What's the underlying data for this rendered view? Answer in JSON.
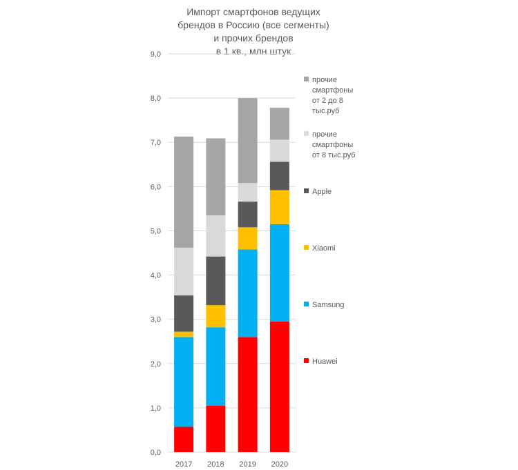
{
  "chart_data": {
    "type": "bar",
    "stacked": true,
    "title_lines": [
      "Импорт смартфонов ведущих",
      "брендов в Россию (все сегменты)",
      "и прочих брендов",
      "в 1 кв., млн штук"
    ],
    "categories": [
      "2017",
      "2018",
      "2019",
      "2020"
    ],
    "ylim": [
      0,
      9
    ],
    "yticks": [
      "0,0",
      "1,0",
      "2,0",
      "3,0",
      "4,0",
      "5,0",
      "6,0",
      "7,0",
      "8,0",
      "9,0"
    ],
    "grid": true,
    "legend_position": "right",
    "series": [
      {
        "name": "Huawei",
        "color": "#ff0000",
        "values": [
          0.57,
          1.05,
          2.6,
          2.95
        ]
      },
      {
        "name": "Samsung",
        "color": "#00b0f0",
        "values": [
          2.03,
          1.77,
          1.98,
          2.2
        ]
      },
      {
        "name": "Xiaomi",
        "color": "#ffc000",
        "values": [
          0.12,
          0.5,
          0.5,
          0.77
        ]
      },
      {
        "name": "Apple",
        "color": "#595959",
        "values": [
          0.82,
          1.1,
          0.58,
          0.64
        ]
      },
      {
        "name_lines": [
          "прочие",
          "смартфоны",
          "от 8 тыс.руб"
        ],
        "color": "#d9d9d9",
        "values": [
          1.08,
          0.93,
          0.42,
          0.5
        ]
      },
      {
        "name_lines": [
          "прочие",
          "смартфоны",
          "от 2 до 8",
          "тыс.руб"
        ],
        "color": "#a6a6a6",
        "values": [
          2.51,
          1.74,
          1.92,
          0.72
        ]
      }
    ]
  }
}
